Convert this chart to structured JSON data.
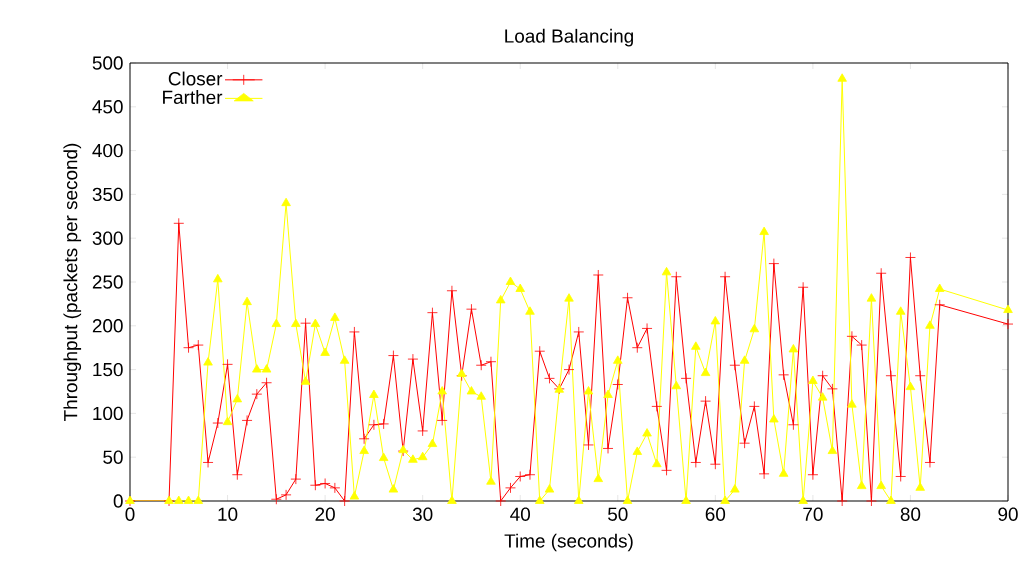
{
  "chart_data": {
    "type": "line",
    "title": "Load Balancing",
    "xlabel": "Time (seconds)",
    "ylabel": "Throughput (packets per second)",
    "xlim": [
      0,
      90
    ],
    "ylim": [
      0,
      500
    ],
    "xticks": [
      0,
      10,
      20,
      30,
      40,
      50,
      60,
      70,
      80,
      90
    ],
    "yticks": [
      0,
      50,
      100,
      150,
      200,
      250,
      300,
      350,
      400,
      450,
      500
    ],
    "grid": false,
    "legend": "top left",
    "line_style": "solid",
    "series": [
      {
        "name": "Closer",
        "color": "#ff0000",
        "marker": "cross",
        "x": [
          0,
          4,
          5,
          6,
          7,
          8,
          9,
          10,
          11,
          12,
          13,
          14,
          15,
          16,
          17,
          18,
          19,
          20,
          21,
          22,
          23,
          24,
          25,
          26,
          27,
          28,
          29,
          30,
          31,
          32,
          33,
          34,
          35,
          36,
          37,
          38,
          39,
          40,
          41,
          42,
          43,
          44,
          45,
          46,
          47,
          48,
          49,
          50,
          51,
          52,
          53,
          54,
          55,
          56,
          57,
          58,
          59,
          60,
          61,
          62,
          63,
          64,
          65,
          66,
          67,
          68,
          69,
          70,
          71,
          72,
          73,
          74,
          75,
          76,
          77,
          78,
          79,
          80,
          81,
          82,
          83,
          90
        ],
        "values": [
          0,
          0,
          317,
          175,
          178,
          44,
          89,
          156,
          30,
          92,
          122,
          135,
          2,
          7,
          25,
          203,
          18,
          20,
          15,
          0,
          193,
          71,
          87,
          88,
          166,
          57,
          162,
          80,
          215,
          92,
          240,
          143,
          219,
          155,
          159,
          0,
          15,
          28,
          30,
          171,
          140,
          128,
          150,
          193,
          64,
          258,
          60,
          133,
          232,
          175,
          197,
          108,
          35,
          256,
          140,
          44,
          114,
          42,
          256,
          155,
          66,
          108,
          31,
          271,
          144,
          87,
          244,
          30,
          143,
          128,
          0,
          188,
          178,
          0,
          260,
          143,
          28,
          278,
          143,
          44,
          224,
          202
        ]
      },
      {
        "name": "Farther",
        "color": "#ffff00",
        "marker": "triangle",
        "x": [
          0,
          4,
          5,
          6,
          7,
          8,
          9,
          10,
          11,
          12,
          13,
          14,
          15,
          16,
          17,
          18,
          19,
          20,
          21,
          22,
          23,
          24,
          25,
          26,
          27,
          28,
          29,
          30,
          31,
          32,
          33,
          34,
          35,
          36,
          37,
          38,
          39,
          40,
          41,
          42,
          43,
          44,
          45,
          46,
          47,
          48,
          49,
          50,
          51,
          52,
          53,
          54,
          55,
          56,
          57,
          58,
          59,
          60,
          61,
          62,
          63,
          64,
          65,
          66,
          67,
          68,
          69,
          70,
          71,
          72,
          73,
          74,
          75,
          76,
          77,
          78,
          79,
          80,
          81,
          82,
          83,
          90
        ],
        "values": [
          0,
          0,
          0,
          0,
          0,
          158,
          253,
          90,
          116,
          227,
          150,
          150,
          202,
          340,
          202,
          136,
          202,
          169,
          209,
          160,
          5,
          57,
          121,
          49,
          13,
          58,
          47,
          50,
          65,
          125,
          0,
          145,
          125,
          119,
          22,
          229,
          250,
          242,
          216,
          0,
          13,
          127,
          231,
          0,
          125,
          25,
          121,
          160,
          0,
          56,
          77,
          42,
          261,
          131,
          0,
          176,
          146,
          205,
          0,
          13,
          160,
          196,
          307,
          93,
          31,
          173,
          0,
          137,
          118,
          57,
          482,
          110,
          17,
          231,
          17,
          0,
          216,
          130,
          15,
          200,
          242,
          218
        ]
      }
    ]
  }
}
